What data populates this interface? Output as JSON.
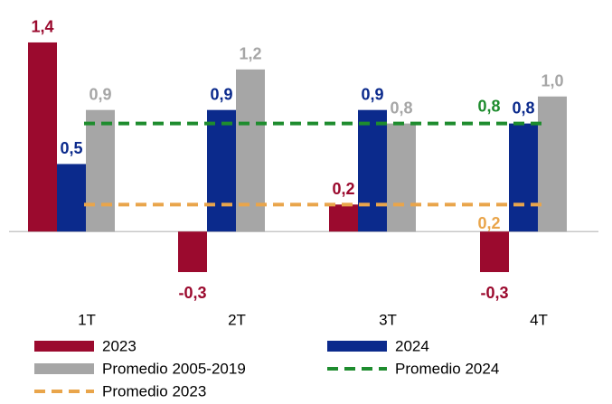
{
  "chart_data": {
    "type": "bar",
    "categories": [
      "1T",
      "2T",
      "3T",
      "4T"
    ],
    "series": [
      {
        "name": "2023",
        "color": "#9b0a2e",
        "values": [
          1.4,
          -0.3,
          0.2,
          -0.3
        ],
        "value_labels": [
          "1,4",
          "-0,3",
          "0,2",
          "-0,3"
        ]
      },
      {
        "name": "2024",
        "color": "#0b2a8c",
        "values": [
          0.5,
          0.9,
          0.9,
          0.8
        ],
        "value_labels": [
          "0,5",
          "0,9",
          "0,9",
          "0,8"
        ]
      },
      {
        "name": "Promedio 2005-2019",
        "color": "#a6a6a6",
        "values": [
          0.9,
          1.2,
          0.8,
          1.0
        ],
        "value_labels": [
          "0,9",
          "1,2",
          "0,8",
          "1,0"
        ]
      }
    ],
    "reference_lines": [
      {
        "name": "Promedio 2024",
        "color": "#1e8c2e",
        "value": 0.8,
        "value_label": "0,8"
      },
      {
        "name": "Promedio 2023",
        "color": "#e9a54b",
        "value": 0.2,
        "value_label": "0,2"
      }
    ],
    "ylim": [
      -0.4,
      1.5
    ],
    "grid": false
  }
}
